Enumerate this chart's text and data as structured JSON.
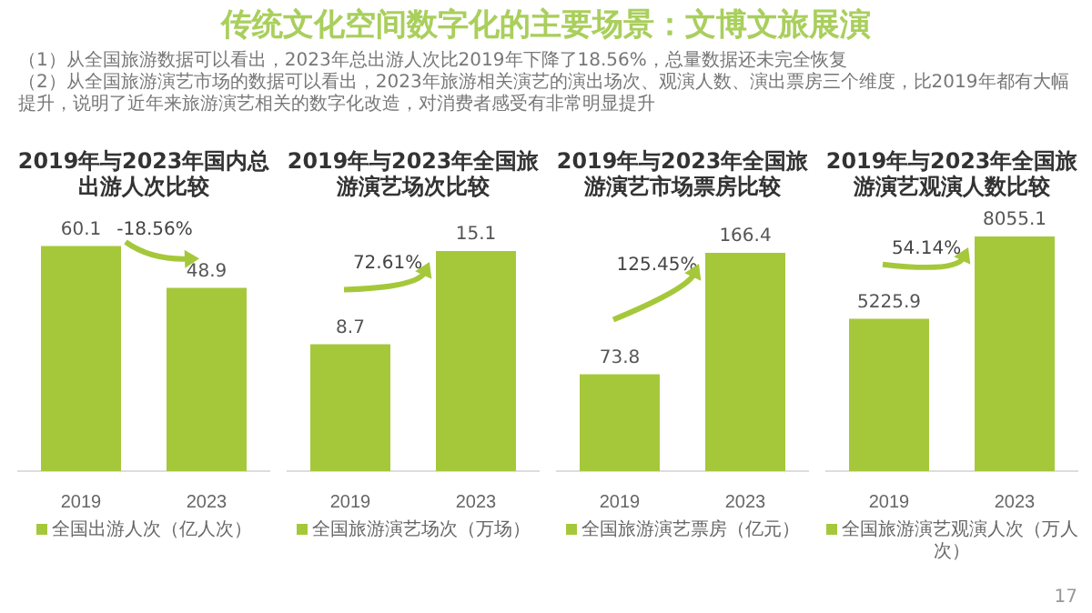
{
  "chart_data": [
    {
      "type": "other",
      "title": "传统文化空间数字化的主要场景：文博文旅展演",
      "annotations": [
        "（1）从全国旅游数据可以看出，2023年总出游人次比2019年下降了18.56%，总量数据还未完全恢复",
        "（2）从全国旅游演艺市场的数据可以看出，2023年旅游相关演艺的演出场次、观演人数、演出票房三个维度，比2019年都有大幅提升，说明了近年来旅游演艺相关的数字化改造，对消费者感受有非常明显提升",
        "17"
      ]
    },
    {
      "type": "bar",
      "title": "2019年与2023年国内总出游人次比较",
      "categories": [
        "2019",
        "2023"
      ],
      "series": [
        {
          "name": "全国出游人次（亿人次）",
          "color": "#a5c83b",
          "values": [
            60.1,
            48.9
          ]
        }
      ],
      "data_labels": true,
      "legend": "bottom",
      "annotations": [
        "-18.56%"
      ]
    },
    {
      "type": "bar",
      "title": "2019年与2023年全国旅游演艺场次比较",
      "categories": [
        "2019",
        "2023"
      ],
      "series": [
        {
          "name": "全国旅游演艺场次（万场）",
          "color": "#a5c83b",
          "values": [
            8.7,
            15.1
          ]
        }
      ],
      "data_labels": true,
      "legend": "bottom",
      "annotations": [
        "72.61%"
      ]
    },
    {
      "type": "bar",
      "title": "2019年与2023年全国旅游演艺市场票房比较",
      "categories": [
        "2019",
        "2023"
      ],
      "series": [
        {
          "name": "全国旅游演艺票房（亿元）",
          "color": "#a5c83b",
          "values": [
            73.8,
            166.4
          ]
        }
      ],
      "data_labels": true,
      "legend": "bottom",
      "annotations": [
        "125.45%"
      ]
    },
    {
      "type": "bar",
      "title": "2019年与2023年全国旅游演艺观演人数比较",
      "categories": [
        "2019",
        "2023"
      ],
      "series": [
        {
          "name": "全国旅游演艺观演人次（万人次）",
          "color": "#a5c83b",
          "values": [
            5225.9,
            8055.1
          ]
        }
      ],
      "data_labels": true,
      "legend": "bottom",
      "annotations": [
        "54.14%"
      ]
    }
  ]
}
